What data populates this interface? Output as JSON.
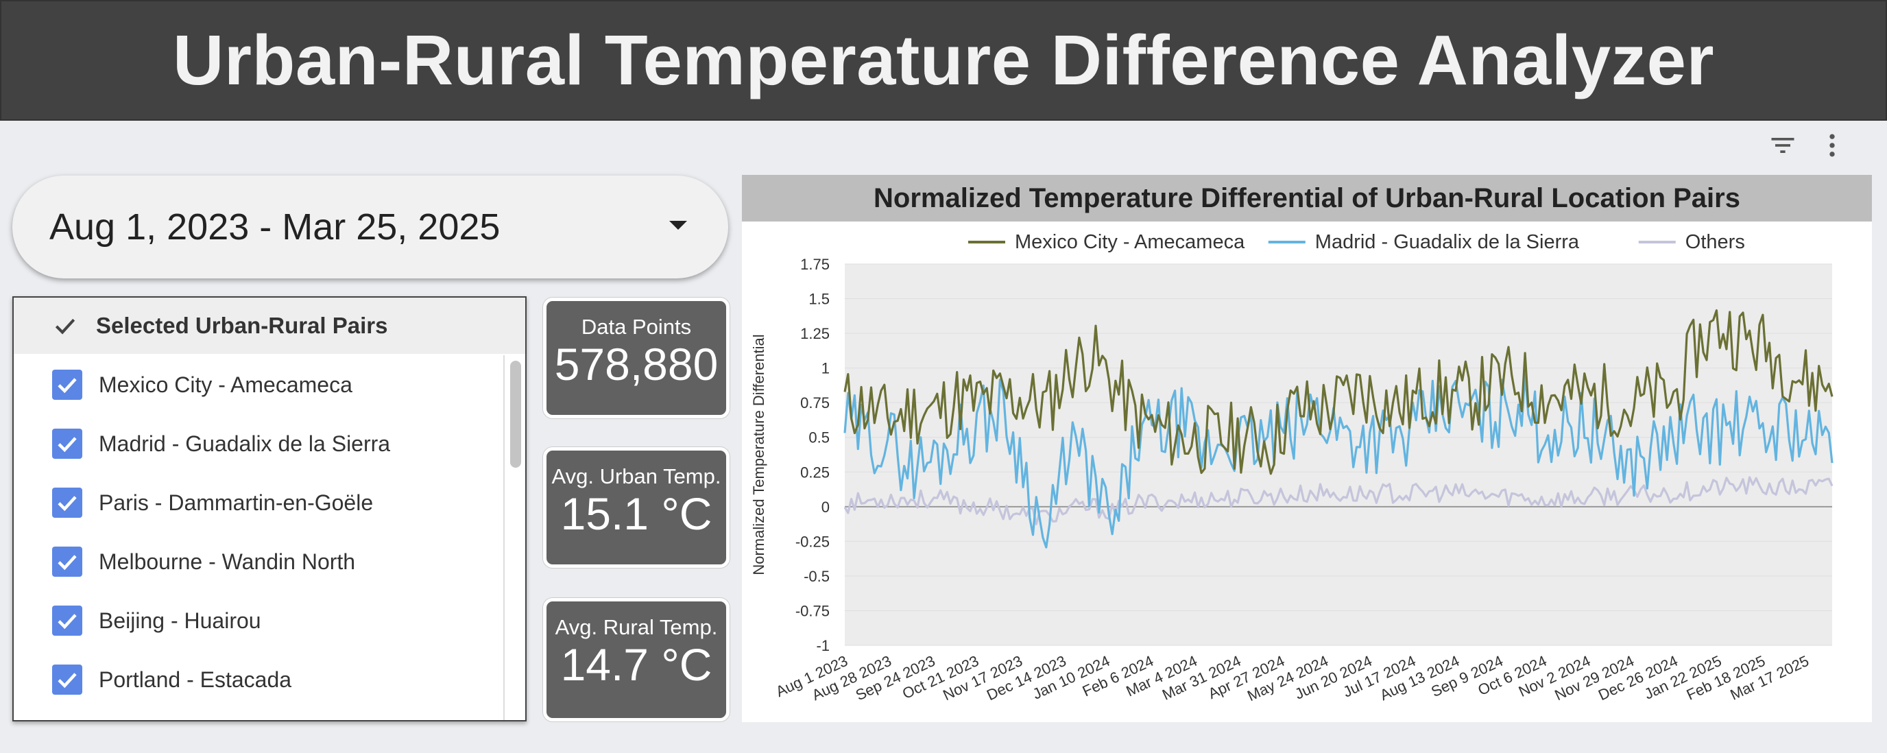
{
  "header": {
    "title": "Urban-Rural Temperature Difference Analyzer"
  },
  "toolbar": {
    "icons": [
      "filter-icon",
      "more-vert-icon"
    ]
  },
  "date_range": {
    "value": "Aug 1, 2023 - Mar 25, 2025"
  },
  "pairs": {
    "title": "Selected Urban-Rural Pairs",
    "items": [
      {
        "label": "Mexico City - Amecameca",
        "checked": true
      },
      {
        "label": "Madrid - Guadalix de la Sierra",
        "checked": true
      },
      {
        "label": "Paris - Dammartin-en-Goële",
        "checked": true
      },
      {
        "label": "Melbourne - Wandin North",
        "checked": true
      },
      {
        "label": "Beijing - Huairou",
        "checked": true
      },
      {
        "label": "Portland - Estacada",
        "checked": true
      }
    ]
  },
  "kpis": {
    "data_points": {
      "label": "Data Points",
      "value": "578,880"
    },
    "urban": {
      "label": "Avg. Urban Temp.",
      "value": "15.1 °C"
    },
    "rural": {
      "label": "Avg. Rural Temp.",
      "value": "14.7 °C"
    }
  },
  "colors": {
    "mexico": "#6b7034",
    "madrid": "#62b4e0",
    "others": "#c4c4dc",
    "header": "#424242",
    "checkbox": "#5b86e5"
  },
  "chart_data": {
    "type": "line",
    "title": "Normalized Temperature Differential of Urban-Rural Location Pairs",
    "ylabel": "Normalized Temperature Differential",
    "xlabel": "",
    "ylim": [
      -1,
      1.75
    ],
    "yticks": [
      1.75,
      1.5,
      1.25,
      1,
      0.75,
      0.5,
      0.25,
      0,
      -0.25,
      -0.5,
      -0.75,
      -1
    ],
    "ytick_labels": [
      "1.75",
      "1.5",
      "1.25",
      "1",
      "0.75",
      "0.5",
      "0.25",
      "0",
      "-0.25",
      "-0.5",
      "-0.75",
      "-1"
    ],
    "x_range": [
      "Aug 1 2023",
      "Mar 25 2025"
    ],
    "xtick_labels": [
      "Aug 1 2023",
      "Aug 28 2023",
      "Sep 24 2023",
      "Oct 21 2023",
      "Nov 17 2023",
      "Dec 14 2023",
      "Jan 10 2024",
      "Feb 6 2024",
      "Mar 4 2024",
      "Mar 31 2024",
      "Apr 27 2024",
      "May 24 2024",
      "Jun 20 2024",
      "Jul 17 2024",
      "Aug 13 2024",
      "Sep 9 2024",
      "Oct 6 2024",
      "Nov 2 2024",
      "Nov 29 2024",
      "Dec 26 2024",
      "Jan 22 2025",
      "Feb 18 2025",
      "Mar 17 2025"
    ],
    "legend_position": "top",
    "grid": true,
    "series": [
      {
        "name": "Mexico City - Amecameca",
        "color": "#6b7034",
        "values": [
          0.75,
          0.72,
          0.62,
          0.7,
          0.68,
          0.78,
          0.75,
          0.8,
          0.78,
          0.72,
          1.0,
          1.1,
          0.88,
          0.65,
          0.55,
          0.5,
          0.48,
          0.5,
          0.5,
          0.45,
          0.72,
          0.68,
          0.75,
          0.85,
          0.75,
          0.72,
          0.82,
          0.8,
          0.8,
          0.9,
          0.92,
          0.8,
          0.8,
          0.8,
          0.78,
          0.7,
          0.8,
          0.78,
          1.18,
          1.3,
          1.22,
          1.15,
          1.02,
          0.88,
          0.9
        ]
      },
      {
        "name": "Madrid - Guadalix de la Sierra",
        "color": "#62b4e0",
        "values": [
          0.6,
          0.5,
          0.48,
          0.28,
          0.35,
          0.5,
          0.62,
          0.7,
          0.28,
          -0.3,
          0.5,
          0.2,
          -0.2,
          0.5,
          0.55,
          0.62,
          0.38,
          0.5,
          0.45,
          0.5,
          0.55,
          0.7,
          0.55,
          0.5,
          0.5,
          0.48,
          0.65,
          0.72,
          0.68,
          0.65,
          0.78,
          0.55,
          0.55,
          0.62,
          0.42,
          0.3,
          0.4,
          0.5,
          0.6,
          0.55,
          0.6,
          0.52,
          0.62,
          0.48,
          0.45
        ]
      },
      {
        "name": "Others",
        "color": "#c4c4dc",
        "values": [
          0.02,
          0.04,
          0.06,
          0.05,
          0.06,
          0.02,
          0.0,
          -0.02,
          -0.05,
          -0.08,
          -0.02,
          0.0,
          -0.04,
          0.02,
          0.04,
          0.04,
          0.06,
          0.06,
          0.07,
          0.08,
          0.08,
          0.1,
          0.09,
          0.09,
          0.1,
          0.09,
          0.1,
          0.1,
          0.09,
          0.08,
          0.07,
          0.05,
          0.06,
          0.06,
          0.08,
          0.08,
          0.09,
          0.1,
          0.12,
          0.14,
          0.15,
          0.14,
          0.13,
          0.14,
          0.15
        ]
      }
    ]
  }
}
